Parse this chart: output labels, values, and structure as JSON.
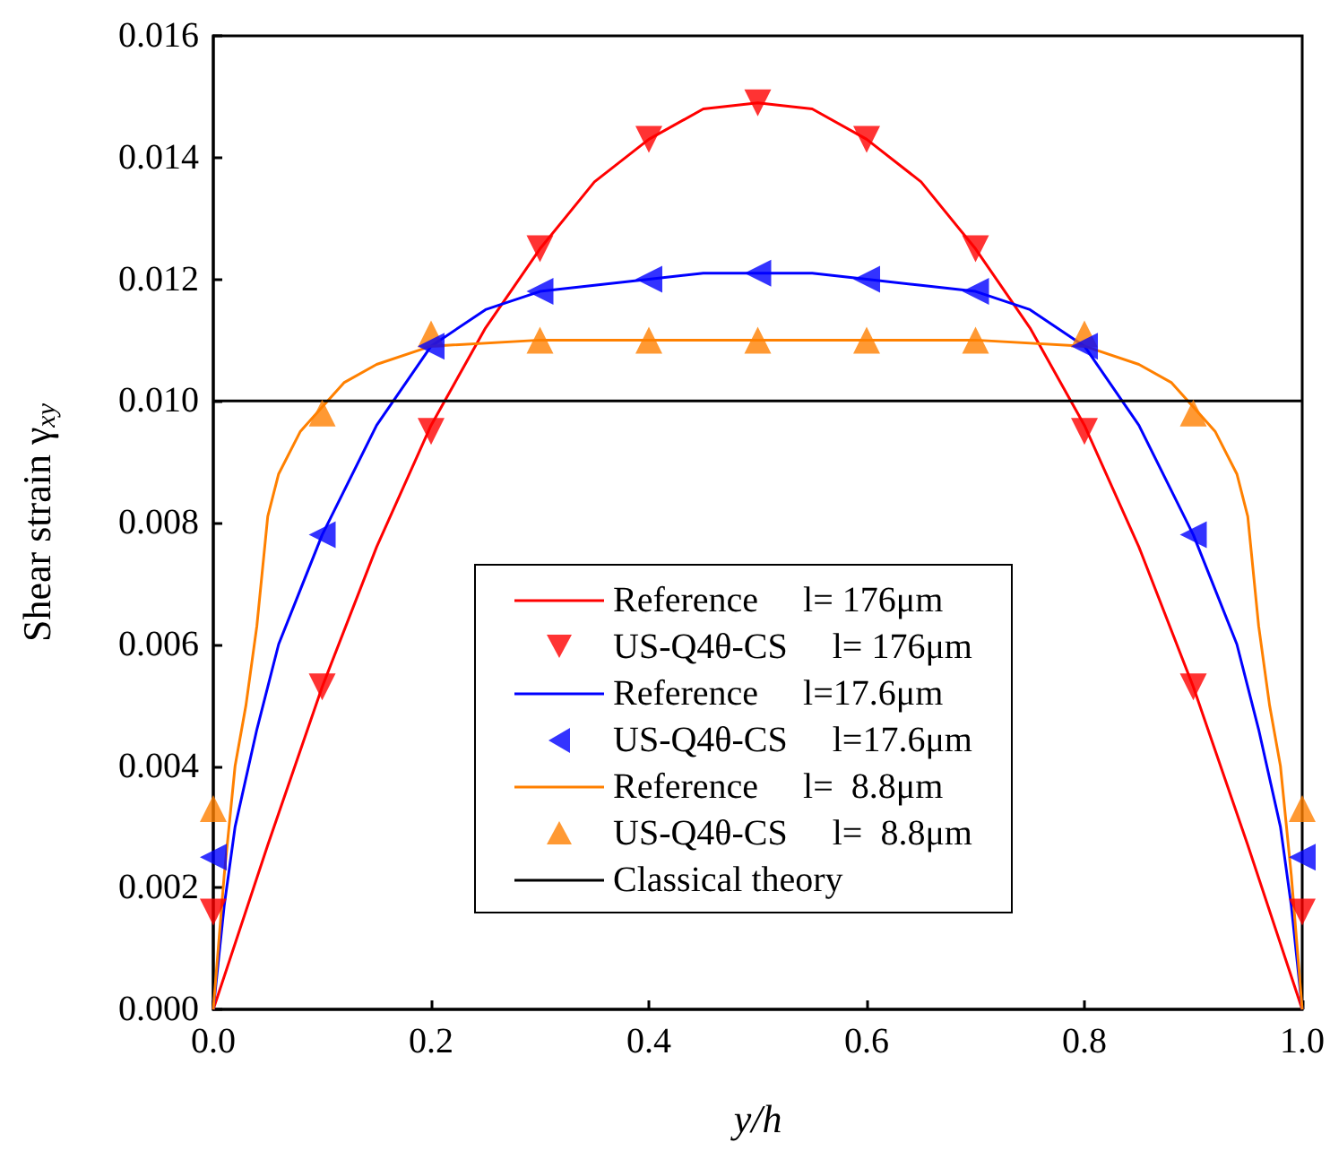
{
  "chart_data": {
    "type": "line",
    "xlabel": "y/h",
    "ylabel": "Shear strain γ$_{xy}$",
    "xlim": [
      0,
      1
    ],
    "ylim": [
      0,
      0.016
    ],
    "xticks": [
      {
        "value": 0,
        "label": "0.0"
      },
      {
        "value": 0.2,
        "label": "0.2"
      },
      {
        "value": 0.4,
        "label": "0.4"
      },
      {
        "value": 0.6,
        "label": "0.6"
      },
      {
        "value": 0.8,
        "label": "0.8"
      },
      {
        "value": 1,
        "label": "1.0"
      }
    ],
    "yticks": [
      {
        "value": 0,
        "label": "0.000"
      },
      {
        "value": 0.002,
        "label": "0.002"
      },
      {
        "value": 0.004,
        "label": "0.004"
      },
      {
        "value": 0.006,
        "label": "0.006"
      },
      {
        "value": 0.008,
        "label": "0.008"
      },
      {
        "value": 0.01,
        "label": "0.010"
      },
      {
        "value": 0.012,
        "label": "0.012"
      },
      {
        "value": 0.014,
        "label": "0.014"
      },
      {
        "value": 0.016,
        "label": "0.016"
      }
    ],
    "grid": false,
    "legend": "bottom",
    "series": [
      {
        "name": "Reference     l= 176μm",
        "marker": "none",
        "color": "#ff0000",
        "x": [
          0,
          0.05,
          0.1,
          0.15,
          0.2,
          0.25,
          0.3,
          0.35,
          0.4,
          0.45,
          0.5,
          0.55,
          0.6,
          0.65,
          0.7,
          0.75,
          0.8,
          0.85,
          0.9,
          0.95,
          1
        ],
        "values": [
          0,
          0.0027,
          0.0053,
          0.0076,
          0.0096,
          0.0112,
          0.0125,
          0.0136,
          0.0143,
          0.0148,
          0.0149,
          0.0148,
          0.0143,
          0.0136,
          0.0125,
          0.0112,
          0.0096,
          0.0076,
          0.0053,
          0.0027,
          0
        ]
      },
      {
        "name": "US-Q4θ-CS     l= 176μm",
        "type": "scatter",
        "marker": "triangle-down",
        "color": "#ff0000",
        "x": [
          0,
          0.1,
          0.2,
          0.3,
          0.4,
          0.5,
          0.6,
          0.7,
          0.8,
          0.9,
          1
        ],
        "values": [
          0.0016,
          0.0053,
          0.0095,
          0.0125,
          0.0143,
          0.0149,
          0.0143,
          0.0125,
          0.0095,
          0.0053,
          0.0016
        ]
      },
      {
        "name": "Reference     l=17.6μm",
        "marker": "none",
        "color": "#0000ff",
        "x": [
          0,
          0.01,
          0.02,
          0.04,
          0.06,
          0.08,
          0.1,
          0.15,
          0.2,
          0.25,
          0.3,
          0.35,
          0.4,
          0.45,
          0.5,
          0.55,
          0.6,
          0.65,
          0.7,
          0.75,
          0.8,
          0.85,
          0.9,
          0.92,
          0.94,
          0.96,
          0.98,
          0.99,
          1
        ],
        "values": [
          0,
          0.0017,
          0.003,
          0.0046,
          0.006,
          0.0069,
          0.0078,
          0.0096,
          0.0109,
          0.0115,
          0.0118,
          0.0119,
          0.012,
          0.0121,
          0.0121,
          0.0121,
          0.012,
          0.0119,
          0.0118,
          0.0115,
          0.0109,
          0.0096,
          0.0078,
          0.0069,
          0.006,
          0.0046,
          0.003,
          0.0017,
          0
        ]
      },
      {
        "name": "US-Q4θ-CS     l=17.6μm",
        "type": "scatter",
        "marker": "triangle-left",
        "color": "#0000ff",
        "x": [
          0,
          0.1,
          0.2,
          0.3,
          0.4,
          0.5,
          0.6,
          0.7,
          0.8,
          0.9,
          1
        ],
        "values": [
          0.0025,
          0.0078,
          0.0109,
          0.0118,
          0.012,
          0.0121,
          0.012,
          0.0118,
          0.0109,
          0.0078,
          0.0025
        ]
      },
      {
        "name": "Reference     l=  8.8μm",
        "marker": "none",
        "color": "#ff8000",
        "x": [
          0,
          0.01,
          0.02,
          0.03,
          0.04,
          0.05,
          0.06,
          0.08,
          0.1,
          0.12,
          0.15,
          0.2,
          0.3,
          0.5,
          0.7,
          0.8,
          0.85,
          0.88,
          0.9,
          0.92,
          0.94,
          0.95,
          0.96,
          0.97,
          0.98,
          0.99,
          1
        ],
        "values": [
          0,
          0.0022,
          0.004,
          0.005,
          0.0063,
          0.0081,
          0.0088,
          0.0095,
          0.0099,
          0.0103,
          0.0106,
          0.0109,
          0.011,
          0.011,
          0.011,
          0.0109,
          0.0106,
          0.0103,
          0.0099,
          0.0095,
          0.0088,
          0.0081,
          0.0063,
          0.005,
          0.004,
          0.0022,
          0
        ]
      },
      {
        "name": "US-Q4θ-CS     l=  8.8μm",
        "type": "scatter",
        "marker": "triangle",
        "color": "#ff8000",
        "x": [
          0,
          0.1,
          0.2,
          0.3,
          0.4,
          0.5,
          0.6,
          0.7,
          0.8,
          0.9,
          1
        ],
        "values": [
          0.0033,
          0.0098,
          0.0111,
          0.011,
          0.011,
          0.011,
          0.011,
          0.011,
          0.0111,
          0.0098,
          0.0033
        ]
      },
      {
        "name": "Classical theory",
        "marker": "none",
        "color": "#000000",
        "x": [
          0,
          1
        ],
        "values": [
          0.01,
          0.01
        ]
      }
    ]
  }
}
